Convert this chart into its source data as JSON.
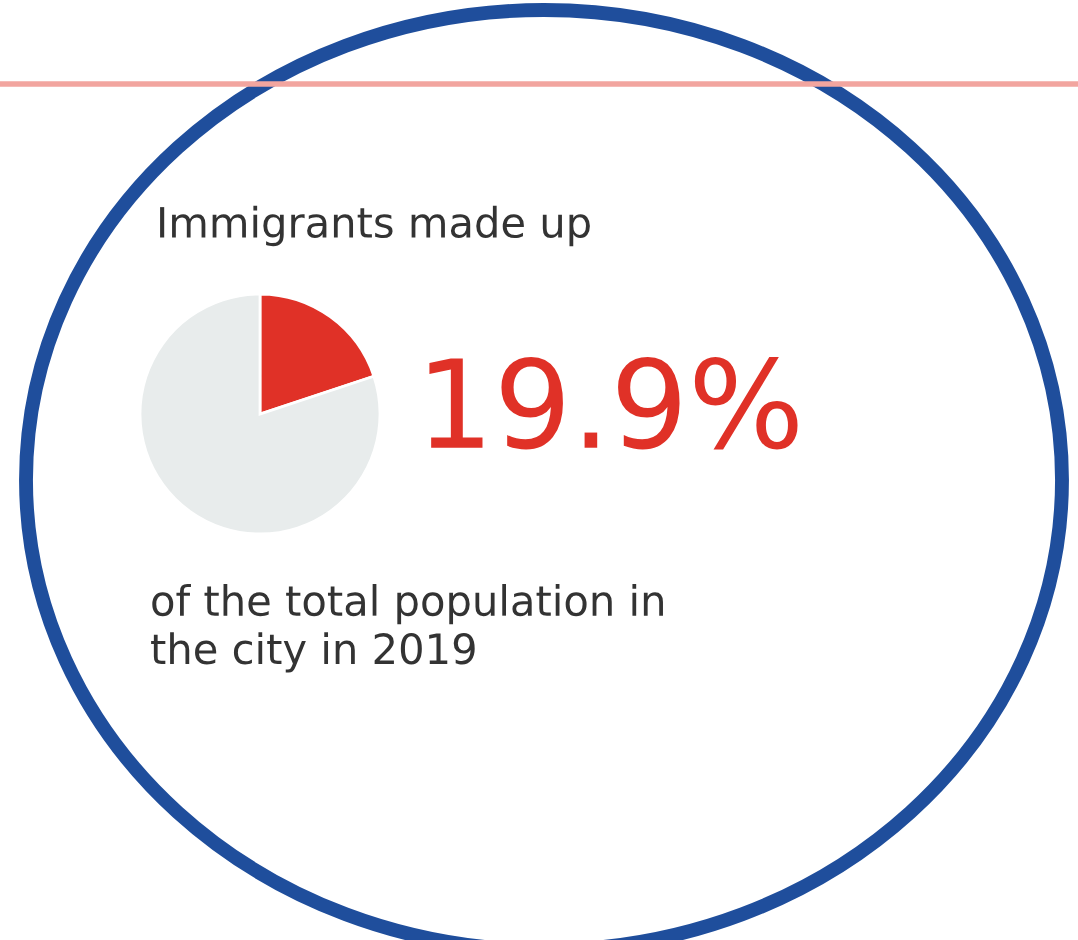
{
  "chart_data": {
    "type": "pie",
    "title": "Immigrants made up",
    "categories": [
      null,
      null
    ],
    "values": [
      19.9,
      80.1
    ],
    "colors": [
      "#e03127",
      "#e8ecec"
    ],
    "value_labels": [
      "19.9%",
      null
    ],
    "annotations": [
      "of the total population in\nthe city in 2019"
    ]
  }
}
